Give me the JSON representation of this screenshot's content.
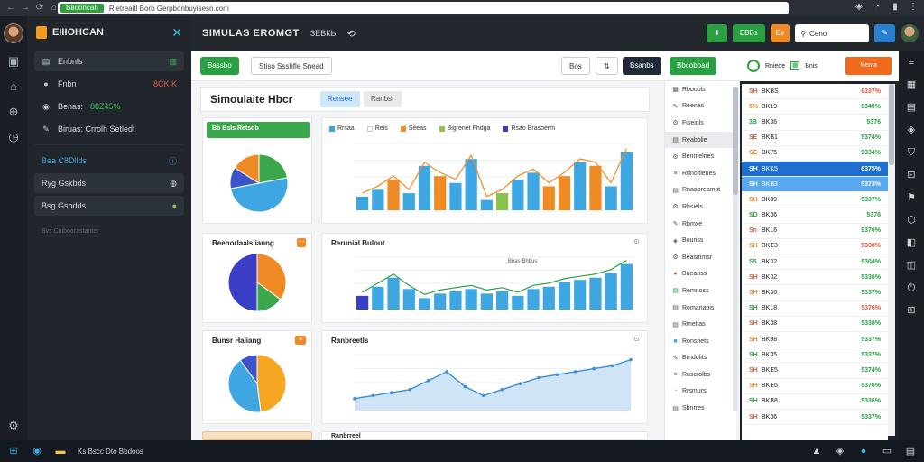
{
  "browser": {
    "tag": "Bвooncah",
    "url": "Rletreaitl Borb Gerpbonbuyisesn.com",
    "icons": [
      "back-icon",
      "forward-icon",
      "reload-icon",
      "home-icon"
    ]
  },
  "rail": {
    "icons": [
      "camera-icon",
      "home-icon",
      "globe-icon",
      "clock-icon",
      "settings-icon"
    ]
  },
  "sidebar": {
    "title": "EIIIOHCAN",
    "items": [
      {
        "label": "Enbnls",
        "right": "▥",
        "active": true
      },
      {
        "label": "Fnbn",
        "right": "8CK K",
        "type": "red"
      },
      {
        "label": "Benas:",
        "green": "88Z45%"
      },
      {
        "label": "Biruas: Crrolh Setledt",
        "type": "plain"
      },
      {
        "label": "Bea C8Dllds",
        "right": "●",
        "highlight": true
      },
      {
        "label": "Ryg Gskbds",
        "right": "●"
      },
      {
        "label": "Bsg Gsbdds",
        "right": "●"
      }
    ],
    "footer": "Bvs Cniboarastanter"
  },
  "appbar": {
    "title": "SIMULAS EROMGT",
    "sub": "ЗЕВКЬ",
    "btn1": "ЕВВз",
    "btn2": "Ee",
    "search_placeholder": "Ceno"
  },
  "toolbar": {
    "btn_green": "Bassbo",
    "filter": "Stiso Ssshfle Snead",
    "btn_search": "Bos",
    "btn_dark": "Bsanbs",
    "btn_green2": "Bbcoboad"
  },
  "page": {
    "title": "Simoulaite Hbcr",
    "tab1": "Rensee",
    "tab2": "Ranbsr"
  },
  "cards": {
    "c1_title": "Bb Bsls Retsdb",
    "c2_title": "Beenorlaalsliaung",
    "c3_title": "Bunsr Haliang",
    "line2_title": "Rerunial Bulout",
    "line2_legend": "Bnas Bhbus",
    "line3_title": "Ranbreetls",
    "bottom_title": "Ranbrreel",
    "bar1_legend": [
      "Rrsaa",
      "Reis",
      "Seeas",
      "Bigrenet Fhdga",
      "Rsao Brasoerm"
    ]
  },
  "right_list": {
    "items": [
      "Rboobls",
      "Reenas",
      "Fiseiols",
      "Reabolie",
      "Benmelnes",
      "Rdnoltienes",
      "Rnaabreamst",
      "Rhsiels",
      "Rbmxe",
      "Bouriss",
      "Beasinmsr",
      "Bueanss",
      "Remnoss",
      "Romanaois",
      "Rmetias",
      "Ronsriets",
      "Brndolits",
      "Ruscrolbs",
      "Rrsmurs",
      "Sbnrres"
    ]
  },
  "ticker_top": {
    "btn1": "Rnieoe",
    "btn2": "Bnis",
    "btn3": "Rema"
  },
  "tickers": [
    {
      "num": "SH",
      "name": "BKBS",
      "val": "6337%",
      "color": "#e0573b"
    },
    {
      "num": "5%",
      "name": "BKL9",
      "val": "9349%",
      "color": "#2aa043"
    },
    {
      "num": "3B",
      "name": "BK36",
      "val": "5376",
      "color": "#2aa043"
    },
    {
      "num": "SE",
      "name": "BKB1",
      "val": "5374%",
      "color": "#2aa043"
    },
    {
      "num": "SE",
      "name": "BK75",
      "val": "9334%",
      "color": "#2aa043"
    },
    {
      "num": "SH",
      "name": "BKK5",
      "val": "6375%",
      "color": "#fff",
      "sel": "sel"
    },
    {
      "num": "SH",
      "name": "BKB3",
      "val": "5373%",
      "color": "#fff",
      "sel": "sel2"
    },
    {
      "num": "SH",
      "name": "BK39",
      "val": "5337%",
      "color": "#2aa043"
    },
    {
      "num": "SD",
      "name": "BK36",
      "val": "5376",
      "color": "#2aa043"
    },
    {
      "num": "Sn",
      "name": "BK16",
      "val": "9376%",
      "color": "#2aa043"
    },
    {
      "num": "SH",
      "name": "BKE3",
      "val": "5338%",
      "color": "#e0573b"
    },
    {
      "num": "S5",
      "name": "BK32",
      "val": "5304%",
      "color": "#2aa043"
    },
    {
      "num": "SH",
      "name": "BK32",
      "val": "5336%",
      "color": "#2aa043"
    },
    {
      "num": "SH",
      "name": "BK36",
      "val": "5337%",
      "color": "#2aa043"
    },
    {
      "num": "SH",
      "name": "BK18",
      "val": "5376%",
      "color": "#e0573b"
    },
    {
      "num": "SH",
      "name": "BK38",
      "val": "5338%",
      "color": "#2aa043"
    },
    {
      "num": "SH",
      "name": "BK98",
      "val": "5337%",
      "color": "#2aa043"
    },
    {
      "num": "SH",
      "name": "BK35",
      "val": "5337%",
      "color": "#2aa043"
    },
    {
      "num": "SH",
      "name": "BKE5",
      "val": "5374%",
      "color": "#2aa043"
    },
    {
      "num": "SH",
      "name": "BKE6",
      "val": "5376%",
      "color": "#2aa043"
    },
    {
      "num": "SH",
      "name": "BKB8",
      "val": "5336%",
      "color": "#2aa043"
    },
    {
      "num": "SH",
      "name": "BK36",
      "val": "5337%",
      "color": "#2aa043"
    }
  ],
  "taskbar": {
    "text": "Ks Bscc Dto Bbdoos"
  },
  "chart_data": [
    {
      "type": "pie",
      "values": [
        0.22,
        0.5,
        0.12,
        0.16
      ],
      "colors": [
        "#3aa84a",
        "#3ea6e0",
        "#3b54c9",
        "#f08a24"
      ]
    },
    {
      "type": "pie",
      "values": [
        0.35,
        0.15,
        0.5
      ],
      "colors": [
        "#f08a24",
        "#3aa84a",
        "#3b3fc7"
      ]
    },
    {
      "type": "pie",
      "values": [
        0.48,
        0.42,
        0.1
      ],
      "colors": [
        "#f5a623",
        "#3ea6e0",
        "#3b54c9"
      ]
    },
    {
      "type": "bar",
      "values": [
        8,
        12,
        18,
        10,
        26,
        20,
        16,
        30,
        6,
        10,
        18,
        22,
        14,
        20,
        28,
        26,
        14,
        34
      ]
    },
    {
      "type": "bar",
      "values": [
        12,
        20,
        28,
        18,
        10,
        14,
        16,
        18,
        14,
        16,
        12,
        18,
        20,
        24,
        26,
        28,
        32,
        40
      ]
    },
    {
      "type": "area",
      "values": [
        8,
        10,
        12,
        14,
        20,
        26,
        16,
        10,
        14,
        18,
        22,
        24,
        26,
        28,
        30,
        34
      ]
    }
  ]
}
